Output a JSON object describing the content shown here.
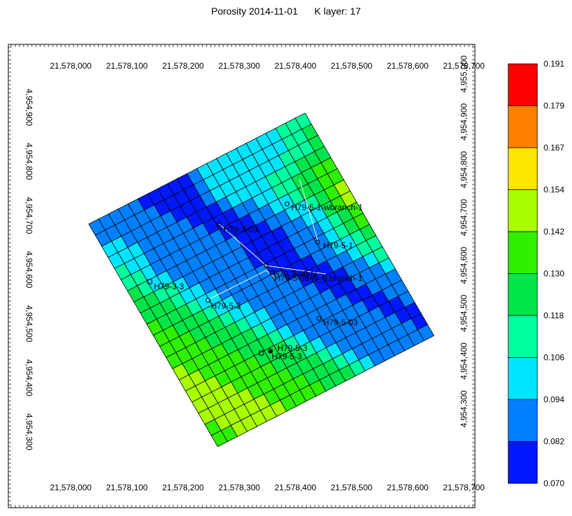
{
  "title": {
    "property": "Porosity 2014-11-01",
    "layer": "K layer: 17"
  },
  "chart_data": {
    "type": "heatmap",
    "property": "Porosity",
    "date": "2014-11-01",
    "k_layer": 17,
    "x_ticks": [
      "21,578,000",
      "21,578,100",
      "21,578,200",
      "21,578,300",
      "21,578,400",
      "21,578,500",
      "21,578,600",
      "21,578,700"
    ],
    "y_ticks_left": [
      "4,954,900",
      "4,954,800",
      "4,954,700",
      "4,954,600",
      "4,954,500",
      "4,954,400",
      "4,954,300"
    ],
    "y_ticks_right": [
      "4,955,000",
      "4,954,900",
      "4,954,800",
      "4,954,700",
      "4,954,600",
      "4,954,500",
      "4,954,400",
      "4,954,300"
    ],
    "colorbar": {
      "values": [
        "0.191",
        "0.179",
        "0.167",
        "0.154",
        "0.142",
        "0.130",
        "0.118",
        "0.106",
        "0.094",
        "0.082",
        "0.070"
      ],
      "colors": [
        "#ff0000",
        "#ff7f00",
        "#ffe600",
        "#a8ff00",
        "#2ff000",
        "#00e64a",
        "#00ff9f",
        "#00e5ff",
        "#0080ff",
        "#0018ff"
      ]
    },
    "grid": {
      "rows": 20,
      "cols": 22,
      "porosity_class": [
        "1111100000122222222333",
        "1111110000122222222334",
        "2211111000122222223334",
        "2221111100012222333444",
        "3221111110001122334455",
        "3321111111000112234455",
        "4322111111100011223456",
        "4433211111100001122456",
        "4443221111100001112345",
        "5444322111110001112345",
        "5544432211111000112234",
        "5554443221111100011233",
        "5555444322111110001123",
        "6555544432111111001112",
        "6655554443211111100111",
        "6665555444321111110011",
        "6666555544432111111001",
        "6666655554443211111100",
        "5666665555444321111110",
        "5566666555544432111111"
      ]
    },
    "wells": [
      {
        "name": "H79-5-1-wbranch-1",
        "symbol": "circle"
      },
      {
        "name": "H79-5-1",
        "symbol": "circle"
      },
      {
        "name": "H79-3-03",
        "symbol": "circle"
      },
      {
        "name": "H79-5-08-N",
        "symbol": "circle"
      },
      {
        "name": "H79-5-08-N_g.branch-1",
        "symbol": "circle"
      },
      {
        "name": "H79-3-3",
        "symbol": "square"
      },
      {
        "name": "H79-5-3",
        "symbol": "circle"
      },
      {
        "name": "H79-5-03",
        "symbol": "circle"
      },
      {
        "name": "H79-5-3",
        "symbol": "square"
      },
      {
        "name": "H79-5-3",
        "symbol": "circle"
      }
    ]
  }
}
